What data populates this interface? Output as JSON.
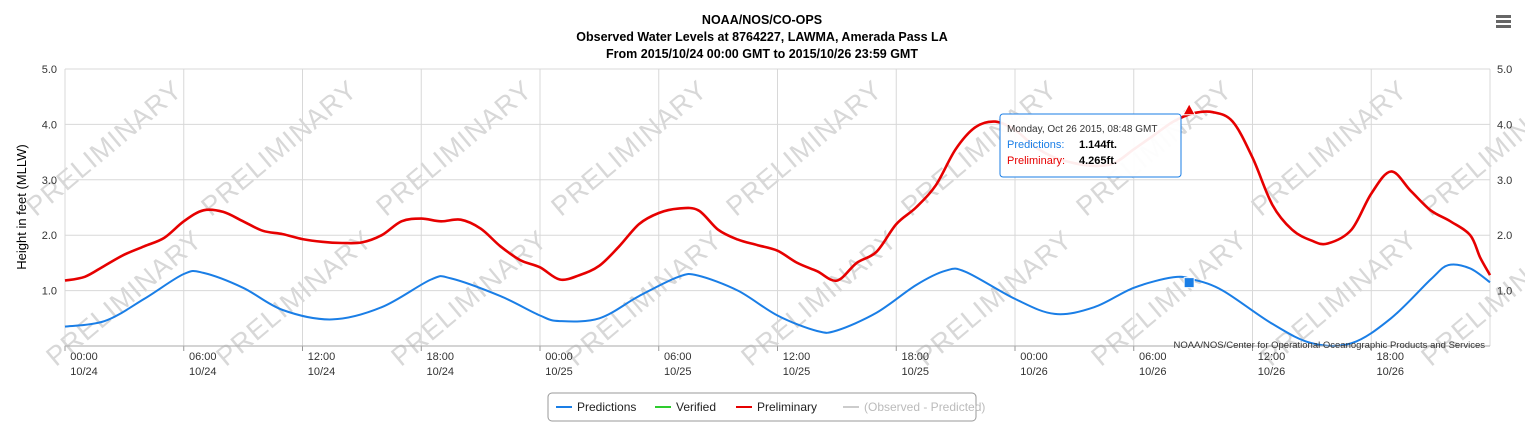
{
  "title": {
    "line1": "NOAA/NOS/CO-OPS",
    "line2": "Observed Water Levels at 8764227, LAWMA, Amerada Pass LA",
    "line3": "From 2015/10/24 00:00 GMT to 2015/10/26 23:59 GMT"
  },
  "credit": "NOAA/NOS/Center for Operational Oceanographic Products and Services",
  "watermark": "PRELIMINARY",
  "menu_icon": "hamburger-menu-icon",
  "tooltip": {
    "header": "Monday, Oct 26 2015, 08:48 GMT",
    "rows": [
      {
        "label": "Predictions:",
        "value": "1.144ft.",
        "color": "#1a7ee6"
      },
      {
        "label": "Preliminary:",
        "value": "4.265ft.",
        "color": "#e60000"
      }
    ]
  },
  "legend": [
    {
      "name": "Predictions",
      "color": "#1a7ee6",
      "text_color": "#222222"
    },
    {
      "name": "Verified",
      "color": "#2ecc2e",
      "text_color": "#222222"
    },
    {
      "name": "Preliminary",
      "color": "#e60000",
      "text_color": "#222222"
    },
    {
      "name": "(Observed - Predicted)",
      "color": "#cccccc",
      "text_color": "#bbbbbb"
    }
  ],
  "chart_data": {
    "type": "line",
    "ylabel": "Height in feet (MLLW)",
    "ylim": [
      0,
      5
    ],
    "xlim_hours": [
      0,
      72
    ],
    "yticks": [
      "",
      "1.0",
      "2.0",
      "3.0",
      "4.0",
      "5.0"
    ],
    "xticks": [
      {
        "time": "00:00",
        "date": "10/24"
      },
      {
        "time": "06:00",
        "date": "10/24"
      },
      {
        "time": "12:00",
        "date": "10/24"
      },
      {
        "time": "18:00",
        "date": "10/24"
      },
      {
        "time": "00:00",
        "date": "10/25"
      },
      {
        "time": "06:00",
        "date": "10/25"
      },
      {
        "time": "12:00",
        "date": "10/25"
      },
      {
        "time": "18:00",
        "date": "10/25"
      },
      {
        "time": "00:00",
        "date": "10/26"
      },
      {
        "time": "06:00",
        "date": "10/26"
      },
      {
        "time": "12:00",
        "date": "10/26"
      },
      {
        "time": "18:00",
        "date": "10/26"
      }
    ],
    "grid": true,
    "legend_placement": "bottom-center",
    "series": [
      {
        "name": "Predictions",
        "color": "#1a7ee6",
        "points": [
          [
            0,
            0.35
          ],
          [
            2,
            0.45
          ],
          [
            4,
            0.85
          ],
          [
            6,
            1.3
          ],
          [
            7,
            1.32
          ],
          [
            9,
            1.05
          ],
          [
            11,
            0.65
          ],
          [
            13.5,
            0.48
          ],
          [
            16,
            0.7
          ],
          [
            18.5,
            1.2
          ],
          [
            19.5,
            1.22
          ],
          [
            22,
            0.9
          ],
          [
            24,
            0.55
          ],
          [
            25,
            0.45
          ],
          [
            27,
            0.5
          ],
          [
            29,
            0.9
          ],
          [
            31,
            1.25
          ],
          [
            32,
            1.27
          ],
          [
            34,
            1.0
          ],
          [
            36,
            0.55
          ],
          [
            38,
            0.27
          ],
          [
            39,
            0.28
          ],
          [
            41,
            0.6
          ],
          [
            43,
            1.1
          ],
          [
            44.5,
            1.36
          ],
          [
            45.5,
            1.34
          ],
          [
            48,
            0.85
          ],
          [
            50,
            0.58
          ],
          [
            52,
            0.7
          ],
          [
            54,
            1.05
          ],
          [
            56,
            1.24
          ],
          [
            57,
            1.2
          ],
          [
            58.5,
            1.0
          ],
          [
            61,
            0.4
          ],
          [
            63,
            0.05
          ],
          [
            65,
            0.05
          ],
          [
            67,
            0.5
          ],
          [
            69,
            1.2
          ],
          [
            69.9,
            1.46
          ],
          [
            71,
            1.4
          ],
          [
            72,
            1.15
          ]
        ]
      },
      {
        "name": "Verified",
        "color": "#2ecc2e",
        "points": []
      },
      {
        "name": "Preliminary",
        "color": "#e60000",
        "points": [
          [
            0,
            1.18
          ],
          [
            1,
            1.25
          ],
          [
            2,
            1.45
          ],
          [
            3,
            1.65
          ],
          [
            4,
            1.8
          ],
          [
            5,
            1.95
          ],
          [
            6,
            2.25
          ],
          [
            7,
            2.45
          ],
          [
            8,
            2.42
          ],
          [
            9,
            2.25
          ],
          [
            10,
            2.08
          ],
          [
            11,
            2.02
          ],
          [
            12,
            1.93
          ],
          [
            13,
            1.88
          ],
          [
            14,
            1.86
          ],
          [
            15,
            1.87
          ],
          [
            16,
            2.0
          ],
          [
            17,
            2.25
          ],
          [
            18,
            2.3
          ],
          [
            19,
            2.25
          ],
          [
            20,
            2.28
          ],
          [
            21,
            2.12
          ],
          [
            22,
            1.8
          ],
          [
            23,
            1.55
          ],
          [
            24,
            1.42
          ],
          [
            25,
            1.2
          ],
          [
            26,
            1.28
          ],
          [
            27,
            1.45
          ],
          [
            28,
            1.8
          ],
          [
            29,
            2.2
          ],
          [
            30,
            2.4
          ],
          [
            31,
            2.48
          ],
          [
            32,
            2.45
          ],
          [
            33,
            2.1
          ],
          [
            34,
            1.92
          ],
          [
            35,
            1.82
          ],
          [
            36,
            1.72
          ],
          [
            37,
            1.5
          ],
          [
            38,
            1.35
          ],
          [
            39,
            1.18
          ],
          [
            40,
            1.5
          ],
          [
            41,
            1.7
          ],
          [
            42,
            2.2
          ],
          [
            43,
            2.5
          ],
          [
            44,
            2.9
          ],
          [
            45,
            3.55
          ],
          [
            46,
            3.95
          ],
          [
            47,
            4.05
          ],
          [
            48,
            3.9
          ],
          [
            49,
            3.6
          ],
          [
            50,
            3.4
          ],
          [
            51,
            3.3
          ],
          [
            52,
            3.25
          ],
          [
            53,
            3.3
          ],
          [
            54,
            3.55
          ],
          [
            55,
            3.8
          ],
          [
            56,
            4.05
          ],
          [
            57,
            4.2
          ],
          [
            58,
            4.22
          ],
          [
            59,
            4.05
          ],
          [
            60,
            3.4
          ],
          [
            61,
            2.55
          ],
          [
            62,
            2.1
          ],
          [
            63,
            1.9
          ],
          [
            63.8,
            1.85
          ],
          [
            65,
            2.1
          ],
          [
            66,
            2.75
          ],
          [
            67,
            3.15
          ],
          [
            68,
            2.8
          ],
          [
            69,
            2.45
          ],
          [
            70,
            2.25
          ],
          [
            71,
            2.0
          ],
          [
            71.5,
            1.6
          ],
          [
            72,
            1.28
          ]
        ]
      },
      {
        "name": "(Observed - Predicted)",
        "color": "#cccccc",
        "points": []
      }
    ],
    "highlight": {
      "hour": 56.8,
      "prediction": 1.144,
      "preliminary": 4.265
    }
  }
}
